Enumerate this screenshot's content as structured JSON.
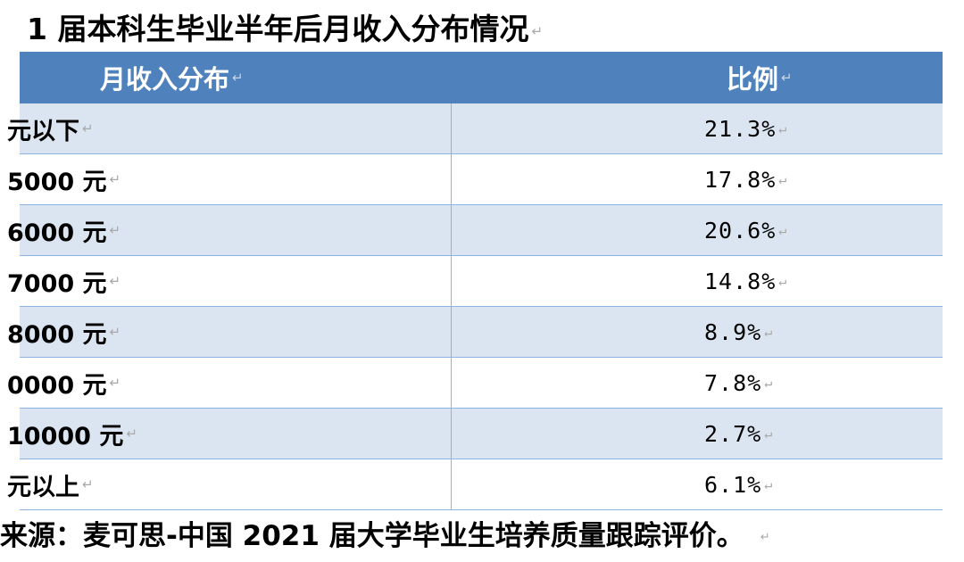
{
  "title": "1 届本科生毕业半年后月收入分布情况",
  "para_mark": "↵",
  "table": {
    "headers": [
      "月收入分布",
      "比例"
    ],
    "rows": [
      {
        "range": "元以下",
        "ratio": "21.3%"
      },
      {
        "range": "5000 元",
        "ratio": "17.8%"
      },
      {
        "range": "6000 元",
        "ratio": "20.6%"
      },
      {
        "range": "7000 元",
        "ratio": "14.8%"
      },
      {
        "range": "8000 元",
        "ratio": "8.9%"
      },
      {
        "range": "0000 元",
        "ratio": "7.8%"
      },
      {
        "range": "10000 元",
        "ratio": "2.7%"
      },
      {
        "range": "元以上",
        "ratio": "6.1%"
      }
    ]
  },
  "source": "来源：麦可思-中国 2021 届大学毕业生培养质量跟踪评价。",
  "colors": {
    "header_bg": "#4f81bd",
    "band_bg": "#dbe5f1",
    "border": "#8db3e2"
  }
}
